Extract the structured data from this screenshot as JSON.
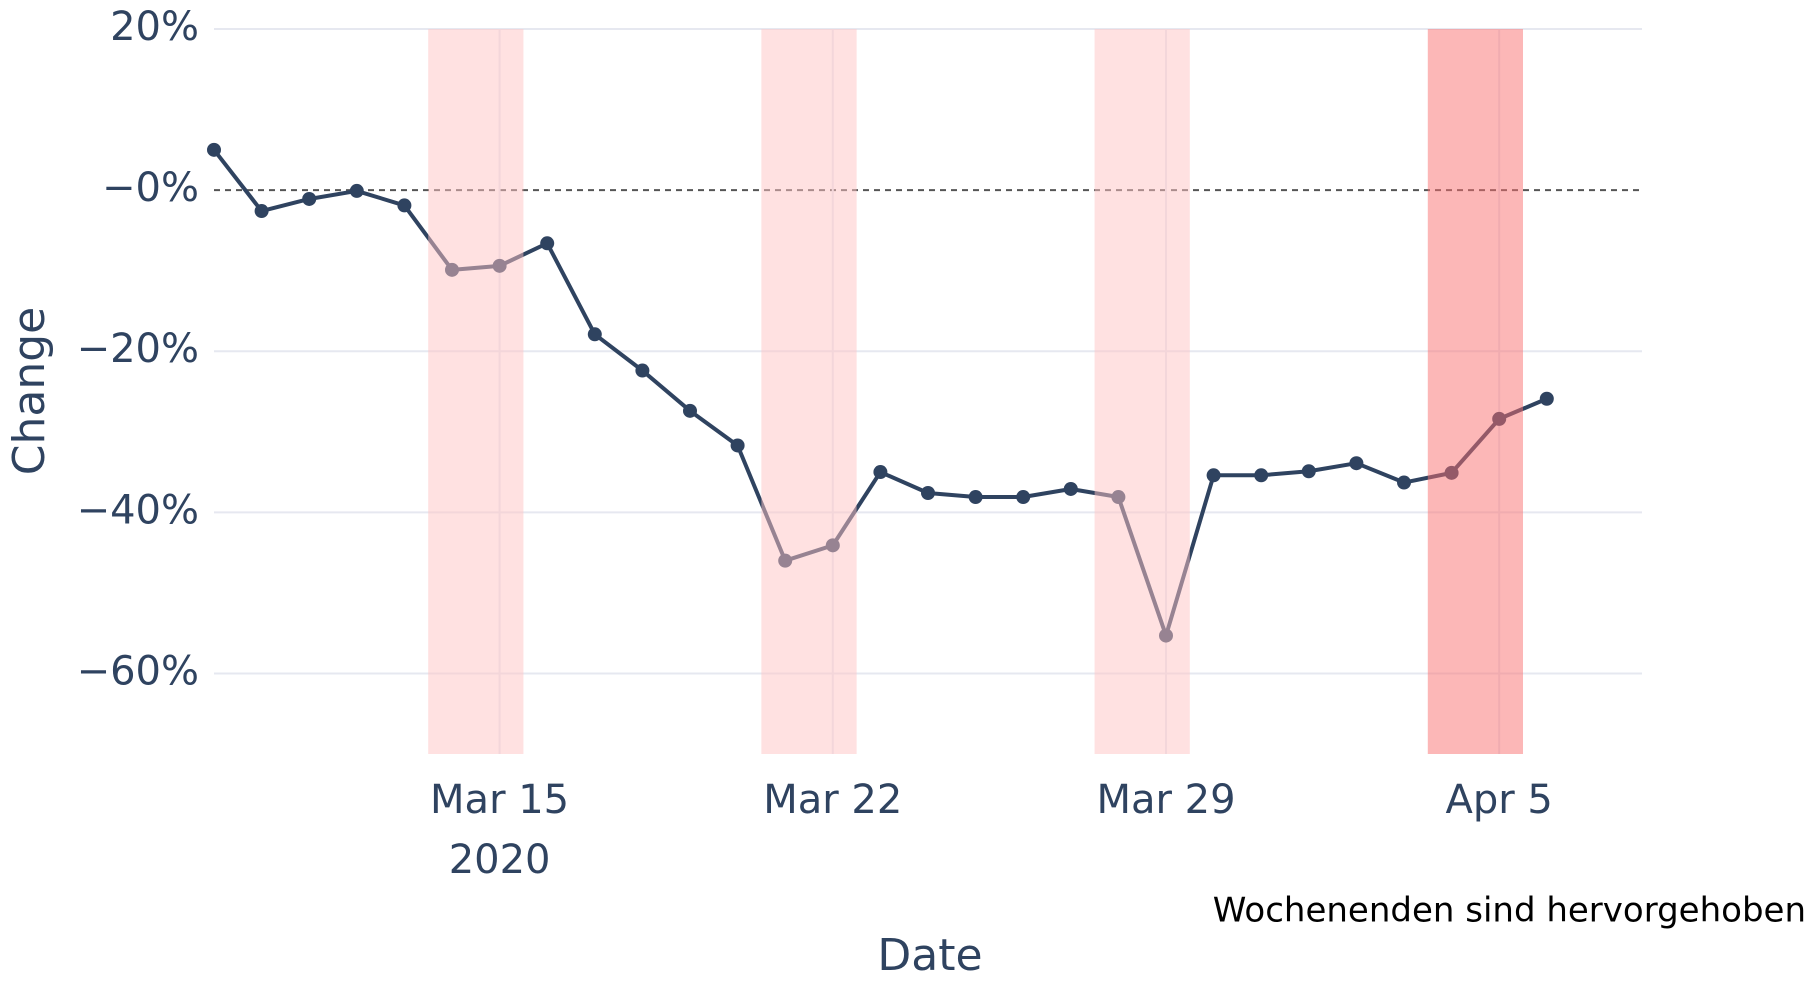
{
  "chart_data": {
    "type": "line",
    "x_label": "Date",
    "y_label": "Change",
    "annotation": "Wochenenden sind hervorgehoben",
    "x": [
      "2020-03-09",
      "2020-03-10",
      "2020-03-11",
      "2020-03-12",
      "2020-03-13",
      "2020-03-14",
      "2020-03-15",
      "2020-03-16",
      "2020-03-17",
      "2020-03-18",
      "2020-03-19",
      "2020-03-20",
      "2020-03-21",
      "2020-03-22",
      "2020-03-23",
      "2020-03-24",
      "2020-03-25",
      "2020-03-26",
      "2020-03-27",
      "2020-03-28",
      "2020-03-29",
      "2020-03-30",
      "2020-03-31",
      "2020-04-01",
      "2020-04-02",
      "2020-04-03",
      "2020-04-04",
      "2020-04-05",
      "2020-04-06"
    ],
    "series": [
      {
        "name": "Change",
        "color": "#2f4360",
        "values": [
          5,
          -2.6,
          -1.1,
          -0.1,
          -1.9,
          -9.9,
          -9.4,
          -6.6,
          -17.9,
          -22.4,
          -27.4,
          -31.7,
          -46,
          -44.1,
          -35,
          -37.6,
          -38.1,
          -38.1,
          -37.1,
          -38.1,
          -55.3,
          -35.4,
          -35.4,
          -34.9,
          -33.9,
          -36.3,
          -35.1,
          -28.4,
          -25.9
        ]
      }
    ],
    "xlim": [
      "2020-03-09",
      "2020-04-08"
    ],
    "xticks": [
      {
        "value": "2020-03-15",
        "label": "Mar 15",
        "sublabel": "2020"
      },
      {
        "value": "2020-03-22",
        "label": "Mar 22"
      },
      {
        "value": "2020-03-29",
        "label": "Mar 29"
      },
      {
        "value": "2020-04-05",
        "label": "Apr 5"
      }
    ],
    "ylim": [
      -70,
      20
    ],
    "yticks": [
      {
        "value": 20,
        "label": "20%"
      },
      {
        "value": 0,
        "label": "−0%"
      },
      {
        "value": -20,
        "label": "−20%"
      },
      {
        "value": -40,
        "label": "−40%"
      },
      {
        "value": -60,
        "label": "−60%"
      }
    ],
    "grid": true,
    "zero_line": true,
    "highlights": [
      {
        "start": "2020-03-14",
        "end": "2020-03-15",
        "color": "#ffc4c4"
      },
      {
        "start": "2020-03-21",
        "end": "2020-03-22",
        "color": "#ffc4c4"
      },
      {
        "start": "2020-03-28",
        "end": "2020-03-29",
        "color": "#ffc4c4"
      },
      {
        "start": "2020-04-04",
        "end": "2020-04-05",
        "color": "#fa7070"
      }
    ]
  }
}
